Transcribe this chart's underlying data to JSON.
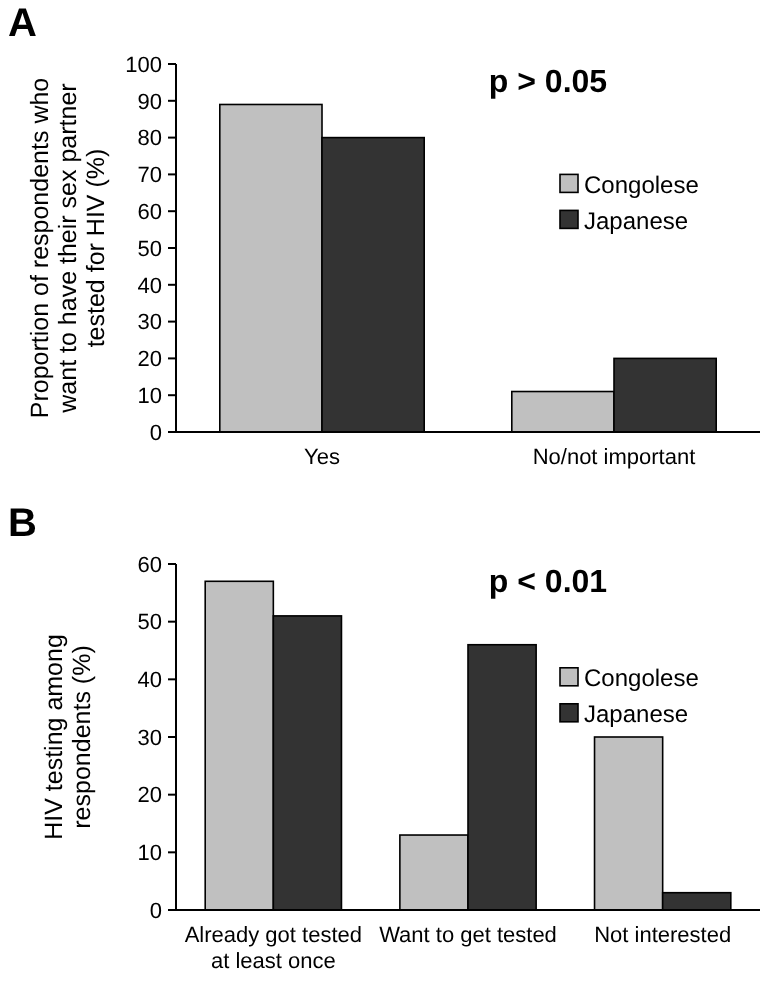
{
  "chart_data": [
    {
      "type": "bar",
      "title": "A",
      "ylabel": "Proportion of respondents who want to  have their sex partner tested for HIV  (%)",
      "annotations": [
        "p > 0.05"
      ],
      "categories": [
        "Yes",
        "No/not important"
      ],
      "series": [
        {
          "name": "Congolese",
          "color": "#c0c0c0",
          "values": [
            89,
            11
          ]
        },
        {
          "name": "Japanese",
          "color": "#333333",
          "values": [
            80,
            20
          ]
        }
      ],
      "ylim": [
        0,
        100
      ],
      "yticks": [
        0,
        10,
        20,
        30,
        40,
        50,
        60,
        70,
        80,
        90,
        100
      ],
      "grid": false,
      "legend": "right"
    },
    {
      "type": "bar",
      "title": "B",
      "ylabel": "HIV testing among respondents (%)",
      "annotations": [
        "p < 0.01"
      ],
      "categories": [
        "Already got tested at least once",
        "Want to get tested",
        "Not interested"
      ],
      "series": [
        {
          "name": "Congolese",
          "color": "#c0c0c0",
          "values": [
            57,
            13,
            30
          ]
        },
        {
          "name": "Japanese",
          "color": "#333333",
          "values": [
            51,
            46,
            3
          ]
        }
      ],
      "ylim": [
        0,
        60
      ],
      "yticks": [
        0,
        10,
        20,
        30,
        40,
        50,
        60
      ],
      "grid": false,
      "legend": "right"
    }
  ]
}
